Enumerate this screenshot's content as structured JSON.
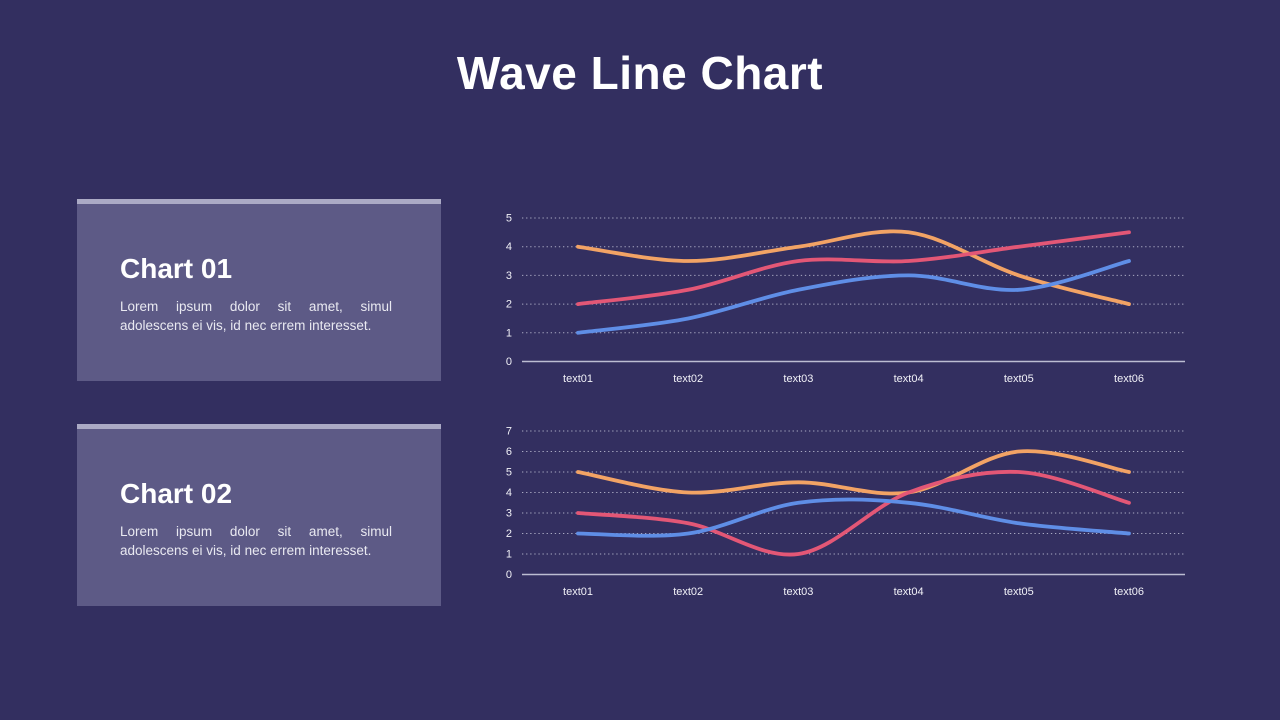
{
  "slide": {
    "title": "Wave Line Chart"
  },
  "palette": {
    "background": "#332F60",
    "card_background": "#5D5A86",
    "card_top_strip": "#ABAAC5",
    "title_text": "#FFFFFF",
    "body_text": "#E9E9F1",
    "gridline": "#C7C8DB",
    "axis_line": "#BCBDD2",
    "tick_label": "#F1F1F7",
    "series_orange": "#F2A365",
    "series_pink": "#E35776",
    "series_blue": "#5F8EE6"
  },
  "cards": [
    {
      "title": "Chart 01",
      "body": "Lorem ipsum dolor sit amet, simul adolescens ei vis, id nec errem interesset."
    },
    {
      "title": "Chart 02",
      "body": "Lorem ipsum dolor sit amet, simul adolescens ei vis, id nec errem interesset."
    }
  ],
  "chart_data": [
    {
      "type": "line",
      "title": "Chart 01",
      "categories": [
        "text01",
        "text02",
        "text03",
        "text04",
        "text05",
        "text06"
      ],
      "series": [
        {
          "name": "orange",
          "color": "#F2A365",
          "values": [
            4,
            3.5,
            4,
            4.5,
            3,
            2
          ]
        },
        {
          "name": "pink",
          "color": "#E35776",
          "values": [
            2,
            2.5,
            3.5,
            3.5,
            4,
            4.5
          ]
        },
        {
          "name": "blue",
          "color": "#5F8EE6",
          "values": [
            1,
            1.5,
            2.5,
            3,
            2.5,
            3.5
          ]
        }
      ],
      "xlabel": "",
      "ylabel": "",
      "ylim": [
        0,
        5
      ],
      "yticks": [
        0,
        1,
        2,
        3,
        4,
        5
      ],
      "grid": true,
      "gridstyle": "dotted",
      "legend": "none",
      "smooth": true
    },
    {
      "type": "line",
      "title": "Chart 02",
      "categories": [
        "text01",
        "text02",
        "text03",
        "text04",
        "text05",
        "text06"
      ],
      "series": [
        {
          "name": "orange",
          "color": "#F2A365",
          "values": [
            5,
            4,
            4.5,
            4,
            6,
            5
          ]
        },
        {
          "name": "pink",
          "color": "#E35776",
          "values": [
            3,
            2.5,
            1,
            4,
            5,
            3.5
          ]
        },
        {
          "name": "blue",
          "color": "#5F8EE6",
          "values": [
            2,
            2,
            3.5,
            3.5,
            2.5,
            2
          ]
        }
      ],
      "xlabel": "",
      "ylabel": "",
      "ylim": [
        0,
        7
      ],
      "yticks": [
        0,
        1,
        2,
        3,
        4,
        5,
        6,
        7
      ],
      "grid": true,
      "gridstyle": "dotted",
      "legend": "none",
      "smooth": true
    }
  ]
}
